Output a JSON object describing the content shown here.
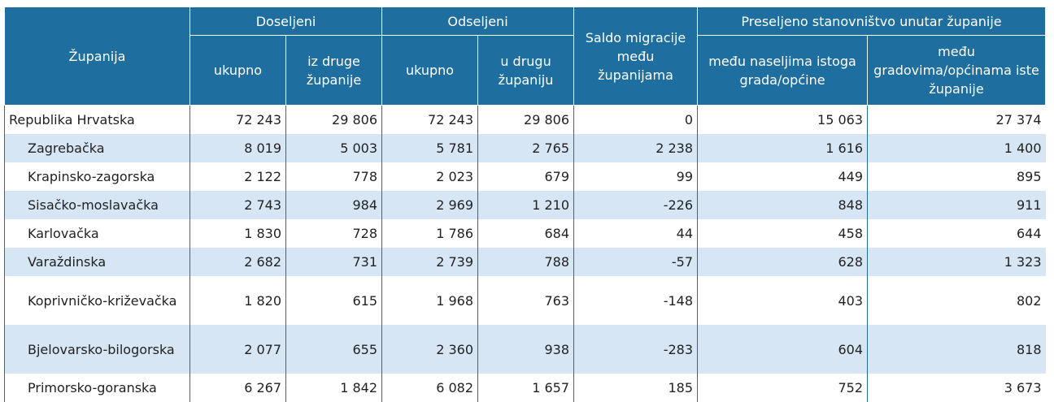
{
  "header": {
    "zupanija": "Županija",
    "doseljeni": "Doseljeni",
    "odseljeni": "Odseljeni",
    "saldo": "Saldo migracije među županijama",
    "preseljeno": "Preseljeno stanovništvo unutar županije",
    "dos_ukupno": "ukupno",
    "dos_iz_druge": "iz druge županije",
    "ods_ukupno": "ukupno",
    "ods_u_drugu": "u drugu županiju",
    "pre_naselja": "među naseljima istoga grada/općine",
    "pre_gradovi": "među gradovima/općinama iste županije"
  },
  "rows": [
    {
      "name": "Republika Hrvatska",
      "dos_ukupno": "72 243",
      "dos_druge": "29 806",
      "ods_ukupno": "72 243",
      "ods_drugu": "29 806",
      "saldo": "0",
      "pre_naselja": "15 063",
      "pre_gradovi": "27 374"
    },
    {
      "name": "Zagrebačka",
      "dos_ukupno": "8 019",
      "dos_druge": "5 003",
      "ods_ukupno": "5 781",
      "ods_drugu": "2 765",
      "saldo": "2 238",
      "pre_naselja": "1 616",
      "pre_gradovi": "1 400"
    },
    {
      "name": "Krapinsko-zagorska",
      "dos_ukupno": "2 122",
      "dos_druge": "778",
      "ods_ukupno": "2 023",
      "ods_drugu": "679",
      "saldo": "99",
      "pre_naselja": "449",
      "pre_gradovi": "895"
    },
    {
      "name": "Sisačko-moslavačka",
      "dos_ukupno": "2 743",
      "dos_druge": "984",
      "ods_ukupno": "2 969",
      "ods_drugu": "1 210",
      "saldo": "-226",
      "pre_naselja": "848",
      "pre_gradovi": "911"
    },
    {
      "name": "Karlovačka",
      "dos_ukupno": "1 830",
      "dos_druge": "728",
      "ods_ukupno": "1 786",
      "ods_drugu": "684",
      "saldo": "44",
      "pre_naselja": "458",
      "pre_gradovi": "644"
    },
    {
      "name": "Varaždinska",
      "dos_ukupno": "2 682",
      "dos_druge": "731",
      "ods_ukupno": "2 739",
      "ods_drugu": "788",
      "saldo": "-57",
      "pre_naselja": "628",
      "pre_gradovi": "1 323"
    },
    {
      "name": "Koprivničko-križevačka",
      "dos_ukupno": "1 820",
      "dos_druge": "615",
      "ods_ukupno": "1 968",
      "ods_drugu": "763",
      "saldo": "-148",
      "pre_naselja": "403",
      "pre_gradovi": "802"
    },
    {
      "name": "Bjelovarsko-bilogorska",
      "dos_ukupno": "2 077",
      "dos_druge": "655",
      "ods_ukupno": "2 360",
      "ods_drugu": "938",
      "saldo": "-283",
      "pre_naselja": "604",
      "pre_gradovi": "818"
    },
    {
      "name": "Primorsko-goranska",
      "dos_ukupno": "6 267",
      "dos_druge": "1 842",
      "ods_ukupno": "6 082",
      "ods_drugu": "1 657",
      "saldo": "185",
      "pre_naselja": "752",
      "pre_gradovi": "3 673"
    }
  ],
  "colors": {
    "header_bg": "#1e6f9f",
    "stripe_bg": "#d6e6f5"
  }
}
